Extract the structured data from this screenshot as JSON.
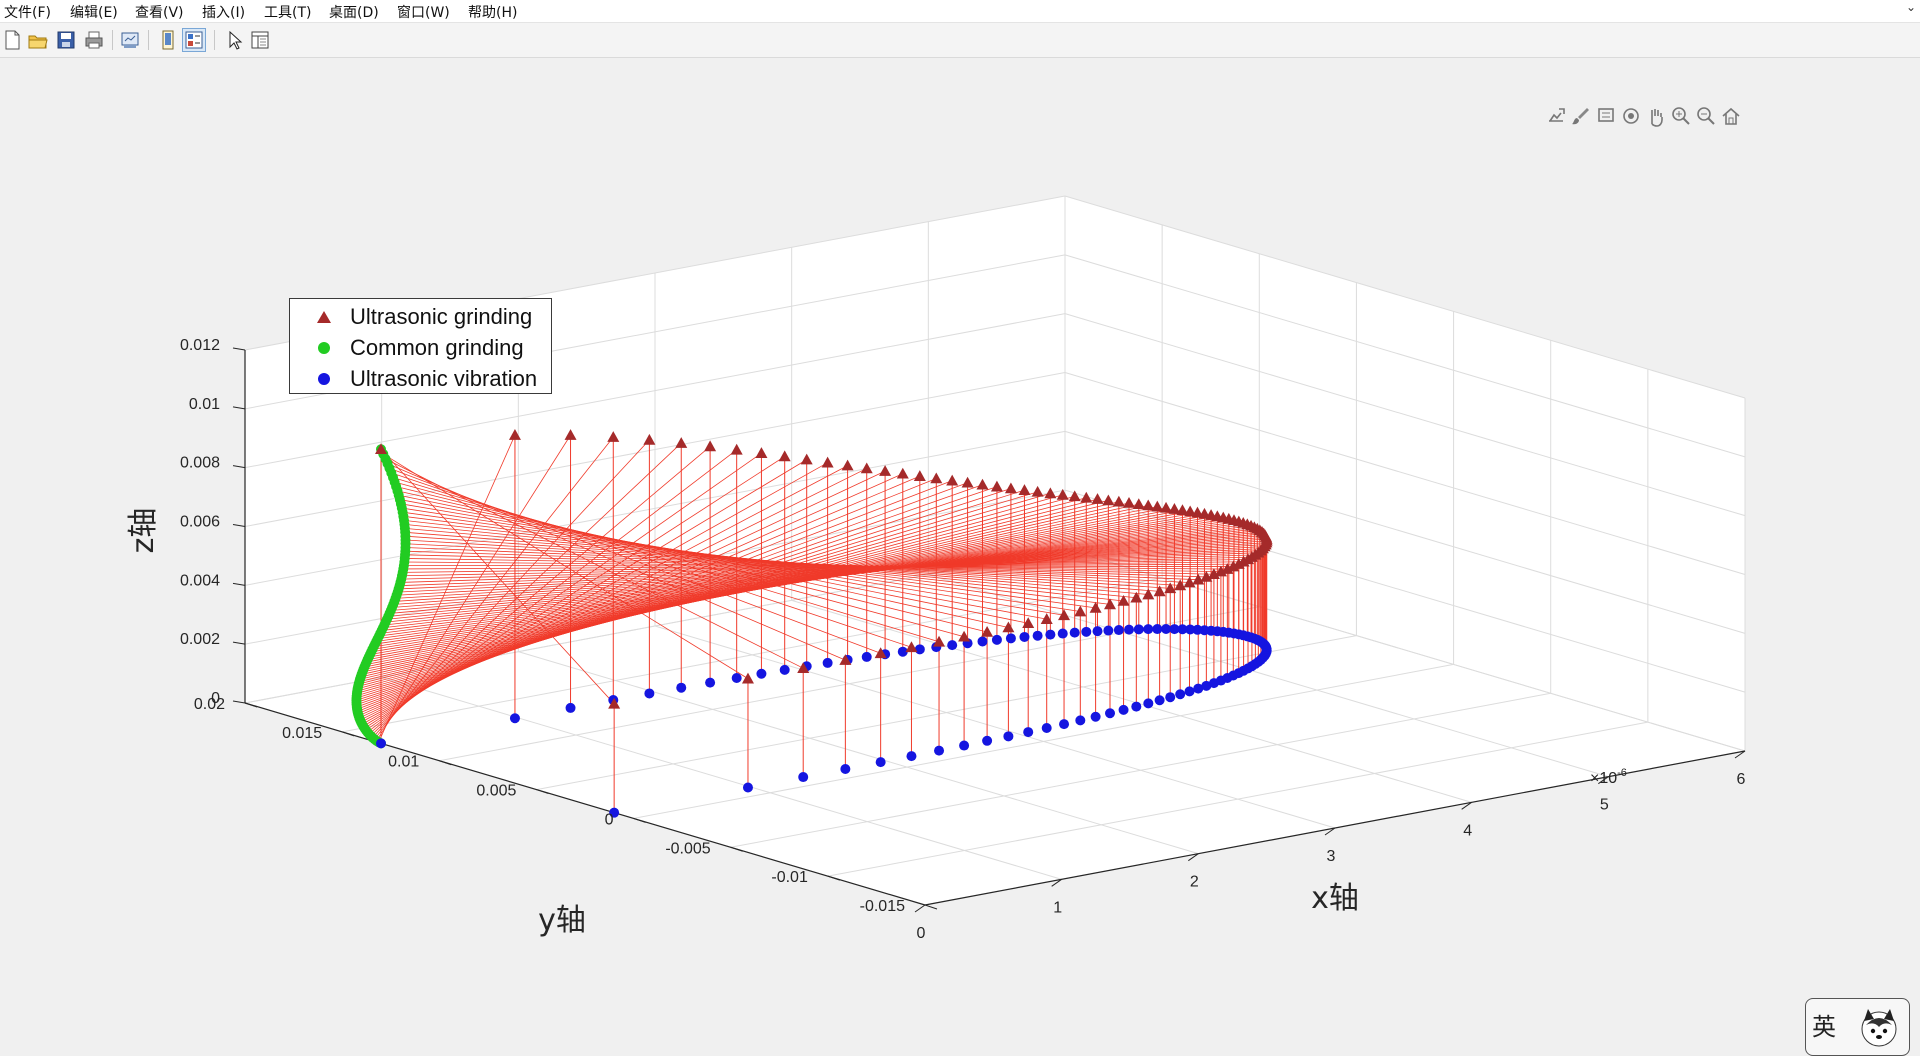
{
  "menu": [
    "文件(F)",
    "编辑(E)",
    "查看(V)",
    "插入(I)",
    "工具(T)",
    "桌面(D)",
    "窗口(W)",
    "帮助(H)"
  ],
  "toolbar_icons": [
    "new-figure-icon",
    "open-file-icon",
    "save-icon",
    "print-icon",
    "link-plot-icon",
    "hide-plot-tools-icon",
    "show-plot-tools-icon",
    "edit-plot-icon",
    "property-inspector-icon"
  ],
  "axes_toolbar_icons": [
    "export-icon",
    "brush-icon",
    "data-tips-icon",
    "rotate-3d-icon",
    "pan-icon",
    "zoom-in-icon",
    "zoom-out-icon",
    "restore-view-icon"
  ],
  "colors": {
    "ultrasonic_grinding": "#a52a2a",
    "common_grinding": "#22cc22",
    "ultrasonic_vibration": "#1515e0",
    "stem_line": "#f03a2a",
    "grid": "#dcdcdc",
    "axis": "#262626"
  },
  "legend": {
    "placement": "top-left",
    "entries": [
      "Ultrasonic grinding",
      "Common grinding",
      "Ultrasonic vibration"
    ]
  },
  "ime": {
    "label": "英"
  },
  "chart_data": {
    "type": "scatter",
    "view": "3d",
    "grid": true,
    "xlabel": "x轴",
    "ylabel": "y轴",
    "zlabel": "z轴",
    "x_exponent_label": "×10",
    "x_exponent_power": "-6",
    "xlim": [
      0,
      6e-06
    ],
    "ylim": [
      -0.015,
      0.02
    ],
    "zlim": [
      0,
      0.012
    ],
    "x_ticks": [
      0,
      1,
      2,
      3,
      4,
      5,
      6
    ],
    "x_tick_labels": [
      "0",
      "1",
      "2",
      "3",
      "4",
      "5",
      "6"
    ],
    "y_ticks": [
      -0.015,
      -0.01,
      -0.005,
      0,
      0.005,
      0.01,
      0.015,
      0.02
    ],
    "y_tick_labels": [
      "-0.015",
      "-0.01",
      "-0.005",
      "0",
      "0.005",
      "0.01",
      "0.015",
      "0.02"
    ],
    "z_ticks": [
      0,
      0.002,
      0.004,
      0.006,
      0.008,
      0.01,
      0.012
    ],
    "z_tick_labels": [
      "0",
      "0.002",
      "0.004",
      "0.006",
      "0.008",
      "0.01",
      "0.012"
    ],
    "series": [
      {
        "name": "Ultrasonic grinding",
        "marker": "triangle"
      },
      {
        "name": "Common grinding",
        "marker": "circle"
      },
      {
        "name": "Ultrasonic vibration",
        "marker": "circle"
      }
    ],
    "model": {
      "description_free": true,
      "x_amplitude": 5.5e-06,
      "y_amplitude": 0.006,
      "vibration_z": 0,
      "z_max": 0.01,
      "common_x": 0,
      "points": 100
    }
  }
}
